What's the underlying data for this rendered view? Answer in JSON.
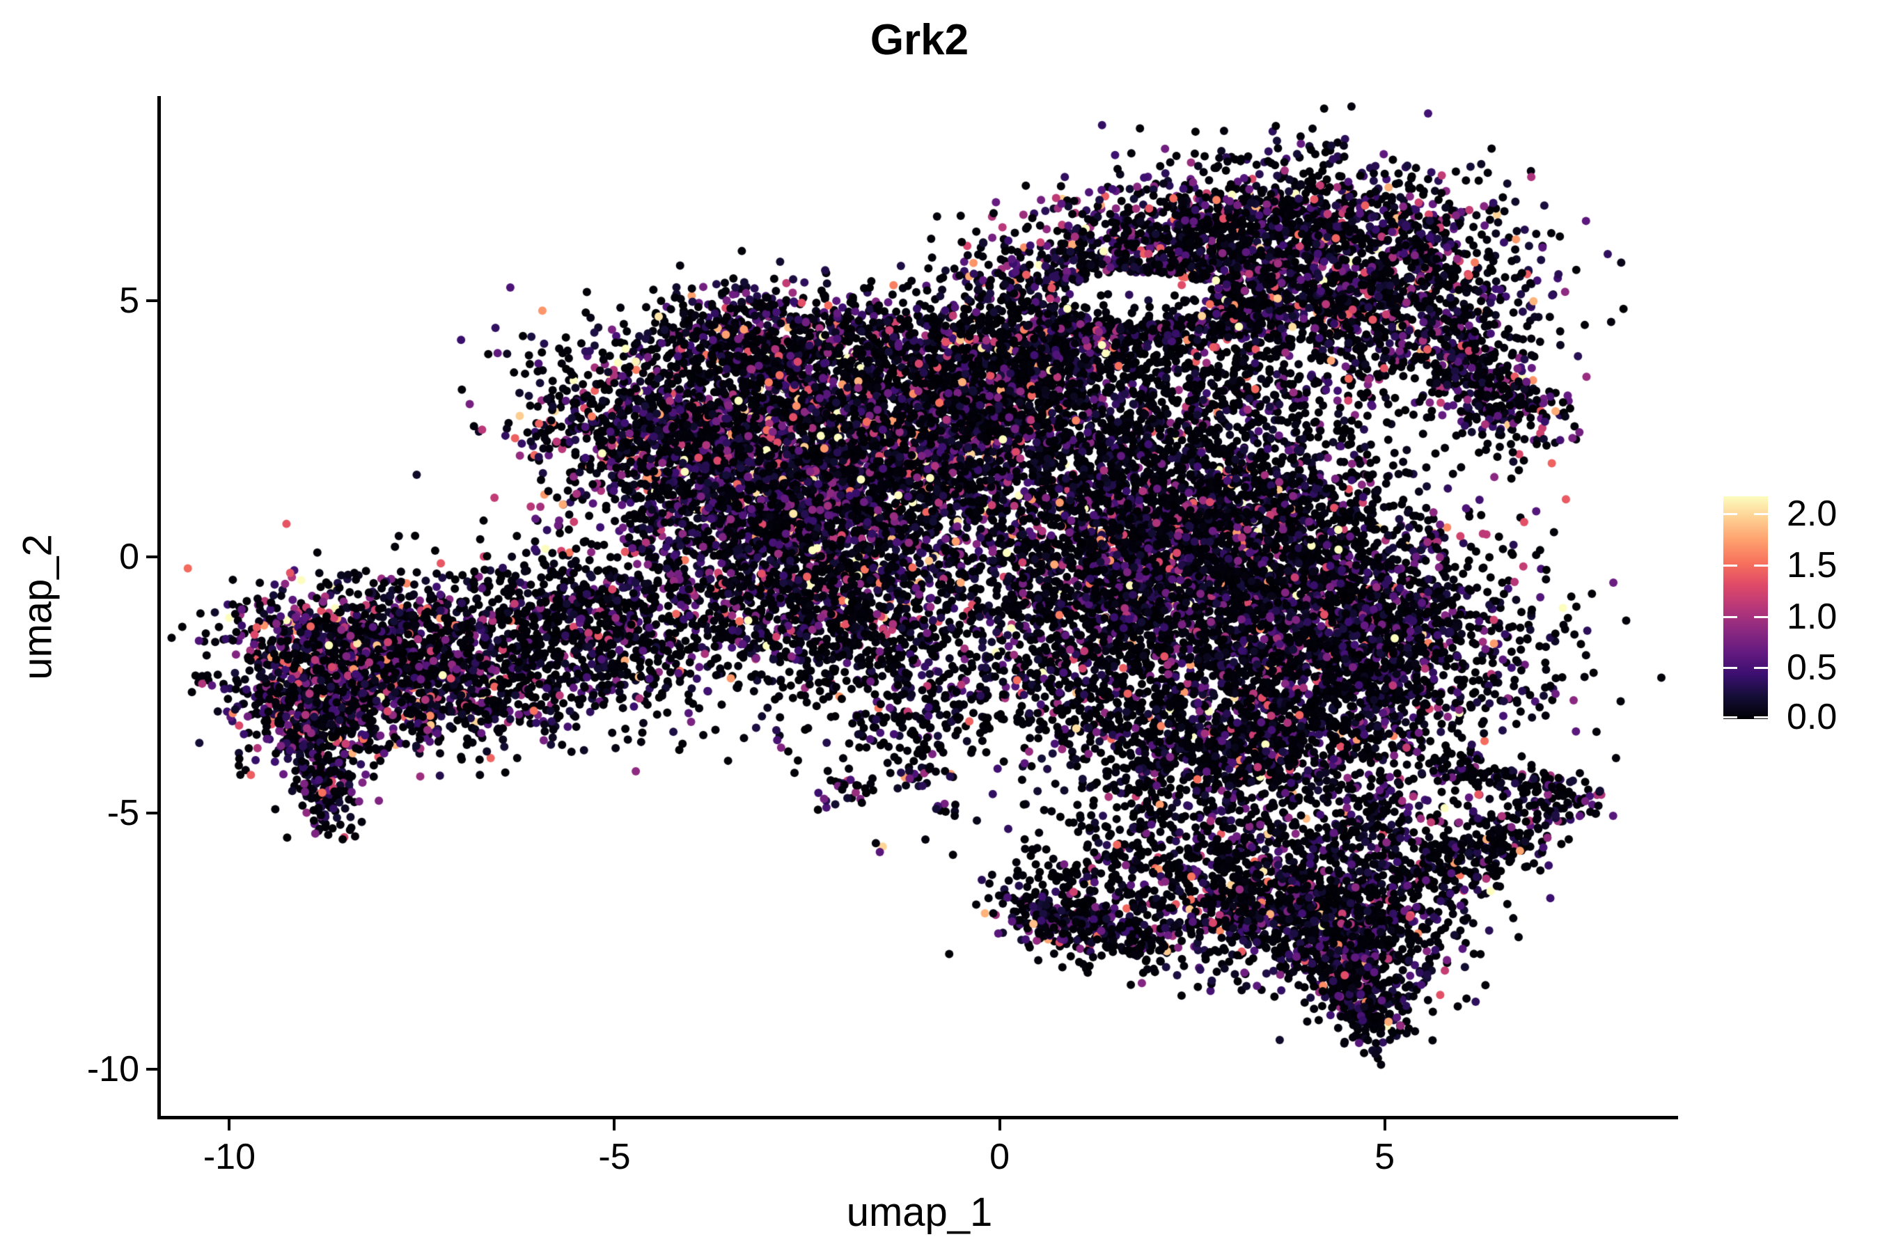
{
  "chart_data": {
    "type": "scatter",
    "title": "Grk2",
    "xlabel": "umap_1",
    "ylabel": "umap_2",
    "xlim": [
      -10.89,
      8.81
    ],
    "ylim": [
      -10.91,
      8.97
    ],
    "x_ticks": [
      -10,
      -5,
      0,
      5
    ],
    "x_tick_labels": [
      "-10",
      "-5",
      "0",
      "5"
    ],
    "y_ticks": [
      5,
      0,
      -5,
      -10
    ],
    "y_tick_labels": [
      "5",
      "0",
      "-5",
      "-10"
    ],
    "grid": false,
    "legend_position": "right",
    "point_radius_px": 6,
    "seed": 420042,
    "colorbar": {
      "vmin": 0.0,
      "vmax": 2.17,
      "ticks": [
        2.0,
        1.5,
        1.0,
        0.5,
        0.0
      ],
      "tick_labels": [
        "2.0",
        "1.5",
        "1.0",
        "0.5",
        "0.0"
      ],
      "colormap": "magma",
      "stops": [
        {
          "t": 0.0,
          "color": "#000004"
        },
        {
          "t": 0.1,
          "color": "#140e36"
        },
        {
          "t": 0.2,
          "color": "#3b0f70"
        },
        {
          "t": 0.3,
          "color": "#641a80"
        },
        {
          "t": 0.4,
          "color": "#8c2981"
        },
        {
          "t": 0.5,
          "color": "#b73779"
        },
        {
          "t": 0.6,
          "color": "#de4968"
        },
        {
          "t": 0.7,
          "color": "#f7705c"
        },
        {
          "t": 0.8,
          "color": "#fe9f6d"
        },
        {
          "t": 0.9,
          "color": "#fece91"
        },
        {
          "t": 1.0,
          "color": "#fcfdbf"
        }
      ]
    },
    "holes": [
      {
        "cx": 1.8,
        "cy": 5.05,
        "rx": 1.0,
        "ry": 0.5
      }
    ],
    "clusters": [
      {
        "name": "left-blob-core",
        "type": "blob",
        "cx": -8.55,
        "cy": -1.95,
        "sx": 0.8,
        "sy": 0.75,
        "rot": -15,
        "n": 1000,
        "zf": 0.48,
        "es": 0.6
      },
      {
        "name": "left-blob-lower",
        "type": "blob",
        "cx": -8.85,
        "cy": -3.2,
        "sx": 0.5,
        "sy": 0.55,
        "rot": 0,
        "n": 420,
        "zf": 0.48,
        "es": 0.6
      },
      {
        "name": "left-blob-finger",
        "type": "blob",
        "cx": -8.75,
        "cy": -4.45,
        "sx": 0.18,
        "sy": 0.5,
        "rot": 0,
        "n": 150,
        "zf": 0.52,
        "es": 0.55
      },
      {
        "name": "left-blob-east",
        "type": "blob",
        "cx": -7.4,
        "cy": -2.1,
        "sx": 0.75,
        "sy": 0.75,
        "rot": 0,
        "n": 520,
        "zf": 0.55,
        "es": 0.5
      },
      {
        "name": "bridge-low",
        "type": "blob",
        "cx": -6.2,
        "cy": -2.3,
        "sx": 0.95,
        "sy": 0.7,
        "rot": 8,
        "n": 420,
        "zf": 0.62,
        "es": 0.42
      },
      {
        "name": "bridge-high",
        "type": "blob",
        "cx": -6.0,
        "cy": -1.0,
        "sx": 0.9,
        "sy": 0.55,
        "rot": 0,
        "n": 300,
        "zf": 0.62,
        "es": 0.42
      },
      {
        "name": "bridge-east",
        "type": "blob",
        "cx": -4.9,
        "cy": -1.7,
        "sx": 0.65,
        "sy": 0.85,
        "rot": 0,
        "n": 320,
        "zf": 0.6,
        "es": 0.45
      },
      {
        "name": "central-arm-west",
        "type": "blob",
        "cx": -4.3,
        "cy": 2.4,
        "sx": 1.05,
        "sy": 0.75,
        "rot": -35,
        "n": 1000,
        "zf": 0.5,
        "es": 0.52
      },
      {
        "name": "central-arm-tip",
        "type": "blob",
        "cx": -3.4,
        "cy": 4.0,
        "sx": 0.6,
        "sy": 0.55,
        "rot": -30,
        "n": 420,
        "zf": 0.5,
        "es": 0.52
      },
      {
        "name": "central-core-west",
        "type": "blob",
        "cx": -2.9,
        "cy": 1.5,
        "sx": 1.15,
        "sy": 1.25,
        "rot": -20,
        "n": 2100,
        "zf": 0.5,
        "es": 0.53
      },
      {
        "name": "central-core-east",
        "type": "blob",
        "cx": -1.3,
        "cy": 1.9,
        "sx": 1.2,
        "sy": 1.25,
        "rot": -15,
        "n": 2100,
        "zf": 0.5,
        "es": 0.53
      },
      {
        "name": "central-crown",
        "type": "blob",
        "cx": -2.0,
        "cy": 4.3,
        "sx": 0.85,
        "sy": 0.5,
        "rot": -10,
        "n": 380,
        "zf": 0.5,
        "es": 0.52
      },
      {
        "name": "central-northeast",
        "type": "blob",
        "cx": -0.2,
        "cy": 3.35,
        "sx": 0.85,
        "sy": 0.8,
        "rot": 0,
        "n": 800,
        "zf": 0.52,
        "es": 0.5
      },
      {
        "name": "central-south",
        "type": "blob",
        "cx": -2.4,
        "cy": -0.7,
        "sx": 1.3,
        "sy": 0.75,
        "rot": -8,
        "n": 1000,
        "zf": 0.55,
        "es": 0.47
      },
      {
        "name": "central-south-sparse",
        "type": "blob",
        "cx": -1.7,
        "cy": -2.1,
        "sx": 1.1,
        "sy": 0.75,
        "rot": 0,
        "n": 420,
        "zf": 0.6,
        "es": 0.42
      },
      {
        "name": "central-drip",
        "type": "blob",
        "cx": -0.9,
        "cy": -3.3,
        "sx": 0.8,
        "sy": 0.45,
        "rot": 20,
        "n": 130,
        "zf": 0.62,
        "es": 0.4
      },
      {
        "name": "islet-a",
        "type": "blob",
        "cx": -1.95,
        "cy": -4.6,
        "sx": 0.22,
        "sy": 0.18,
        "rot": 0,
        "n": 26,
        "zf": 0.5,
        "es": 0.5
      },
      {
        "name": "islet-b",
        "type": "blob",
        "cx": -1.05,
        "cy": -4.3,
        "sx": 0.2,
        "sy": 0.15,
        "rot": 0,
        "n": 22,
        "zf": 0.5,
        "es": 0.5
      },
      {
        "name": "islet-pair",
        "type": "blob",
        "cx": -1.62,
        "cy": -5.78,
        "sx": 0.07,
        "sy": 0.07,
        "rot": 0,
        "n": 3,
        "zf": 0.3,
        "es": 0.9
      },
      {
        "name": "islet-c",
        "type": "blob",
        "cx": -0.7,
        "cy": -4.9,
        "sx": 0.12,
        "sy": 0.1,
        "rot": 0,
        "n": 8,
        "zf": 0.5,
        "es": 0.5
      },
      {
        "name": "neck",
        "type": "blob",
        "cx": 0.6,
        "cy": 3.9,
        "sx": 0.7,
        "sy": 0.6,
        "rot": 0,
        "n": 300,
        "zf": 0.66,
        "es": 0.4
      },
      {
        "name": "gap-field-low",
        "type": "blob",
        "cx": 1.6,
        "cy": 2.6,
        "sx": 1.0,
        "sy": 0.9,
        "rot": 0,
        "n": 380,
        "zf": 0.66,
        "es": 0.4
      },
      {
        "name": "gap-field-high",
        "type": "blob",
        "cx": 3.0,
        "cy": 3.4,
        "sx": 1.1,
        "sy": 0.8,
        "rot": -10,
        "n": 320,
        "zf": 0.66,
        "es": 0.4
      },
      {
        "name": "arm-main",
        "type": "band",
        "x1": 0.35,
        "y1": 5.1,
        "x2": 4.1,
        "y2": 6.7,
        "w": 0.75,
        "n": 1550,
        "zf": 0.5,
        "es": 0.52,
        "hole": true
      },
      {
        "name": "arm-lower-rim",
        "type": "band",
        "x1": 0.7,
        "y1": 4.35,
        "x2": 3.6,
        "y2": 4.75,
        "w": 0.3,
        "n": 380,
        "zf": 0.5,
        "es": 0.52,
        "hole": true
      },
      {
        "name": "arm-east-blob",
        "type": "blob",
        "cx": 4.8,
        "cy": 5.35,
        "sx": 1.0,
        "sy": 1.05,
        "rot": 0,
        "n": 1500,
        "zf": 0.5,
        "es": 0.5
      },
      {
        "name": "arm-tail",
        "type": "band",
        "x1": 5.7,
        "y1": 4.3,
        "x2": 6.85,
        "y2": 2.5,
        "w": 0.38,
        "n": 420,
        "zf": 0.52,
        "es": 0.48
      },
      {
        "name": "right-mass-upper",
        "type": "blob",
        "cx": 2.6,
        "cy": 0.9,
        "sx": 1.35,
        "sy": 1.0,
        "rot": -20,
        "n": 1900,
        "zf": 0.55,
        "es": 0.46
      },
      {
        "name": "right-mass-core",
        "type": "blob",
        "cx": 3.4,
        "cy": -1.0,
        "sx": 1.5,
        "sy": 1.3,
        "rot": -25,
        "n": 2400,
        "zf": 0.55,
        "es": 0.46
      },
      {
        "name": "right-mass-east",
        "type": "blob",
        "cx": 4.9,
        "cy": -1.9,
        "sx": 0.95,
        "sy": 1.05,
        "rot": -20,
        "n": 1000,
        "zf": 0.55,
        "es": 0.46
      },
      {
        "name": "right-mass-south",
        "type": "blob",
        "cx": 3.1,
        "cy": -3.7,
        "sx": 0.95,
        "sy": 0.65,
        "rot": -10,
        "n": 800,
        "zf": 0.6,
        "es": 0.44
      },
      {
        "name": "right-mass-west",
        "type": "blob",
        "cx": 1.4,
        "cy": -0.6,
        "sx": 0.8,
        "sy": 0.9,
        "rot": 0,
        "n": 700,
        "zf": 0.55,
        "es": 0.46
      },
      {
        "name": "right-spike",
        "type": "band",
        "x1": 5.6,
        "y1": -4.05,
        "x2": 7.75,
        "y2": -4.7,
        "w": 0.16,
        "n": 150,
        "zf": 0.6,
        "es": 0.42
      },
      {
        "name": "right-mass-sw-drip",
        "type": "blob",
        "cx": 1.0,
        "cy": -2.6,
        "sx": 0.6,
        "sy": 0.8,
        "rot": 0,
        "n": 250,
        "zf": 0.62,
        "es": 0.4
      },
      {
        "name": "right-mass-under-sparse",
        "type": "blob",
        "cx": 2.2,
        "cy": -5.0,
        "sx": 0.9,
        "sy": 0.5,
        "rot": 0,
        "n": 160,
        "zf": 0.65,
        "es": 0.4
      },
      {
        "name": "bottom-strip",
        "type": "band",
        "x1": 0.15,
        "y1": -6.85,
        "x2": 2.05,
        "y2": -7.55,
        "w": 0.28,
        "n": 380,
        "zf": 0.6,
        "es": 0.42
      },
      {
        "name": "bottom-strip-halo",
        "type": "blob",
        "cx": 1.1,
        "cy": -6.3,
        "sx": 0.7,
        "sy": 0.35,
        "rot": -15,
        "n": 90,
        "zf": 0.68,
        "es": 0.4
      },
      {
        "name": "bottom-cluster",
        "type": "blob",
        "cx": 3.6,
        "cy": -6.6,
        "sx": 1.15,
        "sy": 0.8,
        "rot": -15,
        "n": 1350,
        "zf": 0.6,
        "es": 0.42
      },
      {
        "name": "bottom-cluster-dense",
        "type": "blob",
        "cx": 4.6,
        "cy": -7.6,
        "sx": 0.55,
        "sy": 0.6,
        "rot": 0,
        "n": 450,
        "zf": 0.6,
        "es": 0.42
      },
      {
        "name": "bottom-tail",
        "type": "band",
        "x1": 4.55,
        "y1": -8.1,
        "x2": 4.95,
        "y2": -9.35,
        "w": 0.25,
        "n": 220,
        "zf": 0.6,
        "es": 0.42
      },
      {
        "name": "bottom-right-arm",
        "type": "band",
        "x1": 5.4,
        "y1": -6.4,
        "x2": 7.15,
        "y2": -4.95,
        "w": 0.3,
        "n": 300,
        "zf": 0.6,
        "es": 0.42
      },
      {
        "name": "bottom-connector",
        "type": "blob",
        "cx": 4.9,
        "cy": -5.2,
        "sx": 0.5,
        "sy": 0.5,
        "rot": 0,
        "n": 150,
        "zf": 0.62,
        "es": 0.44
      }
    ]
  }
}
